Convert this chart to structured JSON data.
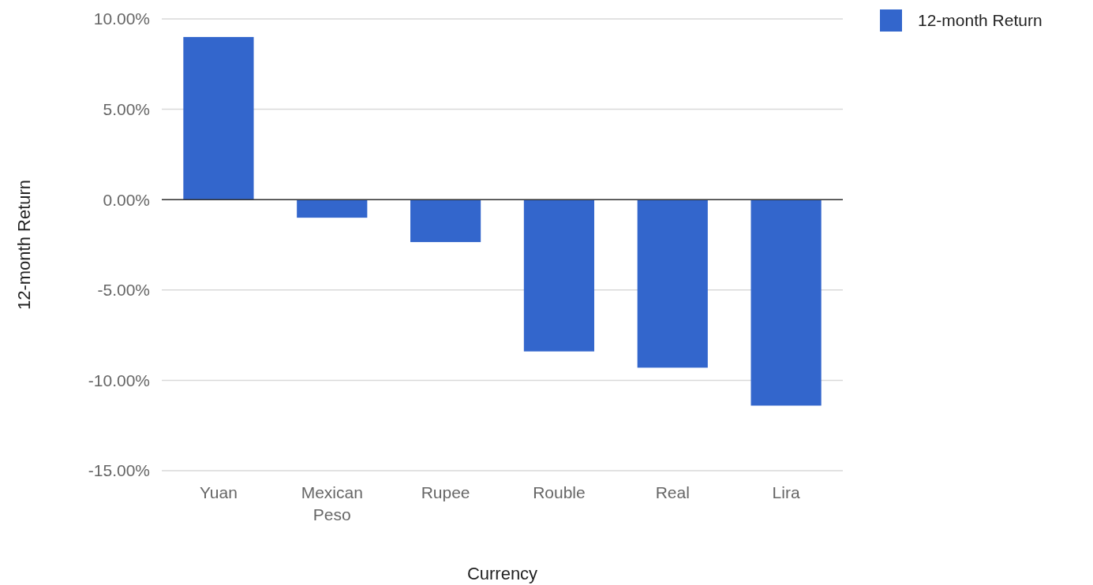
{
  "chart_data": {
    "type": "bar",
    "xlabel": "Currency",
    "ylabel": "12-month Return",
    "categories": [
      "Yuan",
      "Mexican Peso",
      "Rupee",
      "Rouble",
      "Real",
      "Lira"
    ],
    "series": [
      {
        "name": "12-month Return",
        "color": "#3366cc",
        "values": [
          9.0,
          -1.0,
          -2.35,
          -8.4,
          -9.3,
          -11.4
        ]
      }
    ],
    "ylim": [
      -15,
      10
    ],
    "yticks": [
      {
        "value": -15,
        "label": "-15.00%"
      },
      {
        "value": -10,
        "label": "-10.00%"
      },
      {
        "value": -5,
        "label": "-5.00%"
      },
      {
        "value": 0,
        "label": "0.00%"
      },
      {
        "value": 5,
        "label": "5.00%"
      },
      {
        "value": 10,
        "label": "10.00%"
      }
    ],
    "grid": "y",
    "legend": "top right"
  }
}
